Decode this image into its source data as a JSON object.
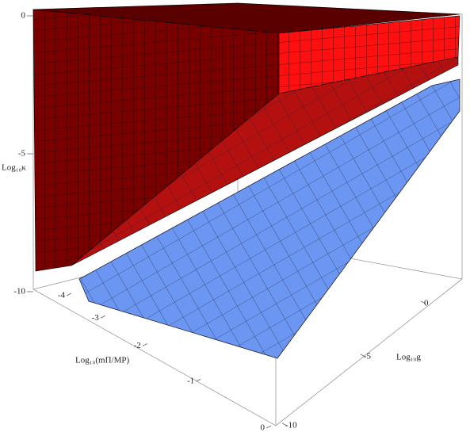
{
  "chart_data": {
    "type": "surface3d",
    "zlabel": "Log₁₀κ",
    "xlabel": "Log₁₀(mΠ/MP)",
    "ylabel": "Log₁₀g",
    "xlim": [
      -4,
      0
    ],
    "xticks": [
      -4,
      -3,
      -2,
      -1,
      0
    ],
    "ylim": [
      -10,
      0
    ],
    "yticks": [
      -10,
      -5,
      0
    ],
    "zlim": [
      -10,
      0
    ],
    "zticks": [
      -10,
      -5,
      0
    ]
  }
}
